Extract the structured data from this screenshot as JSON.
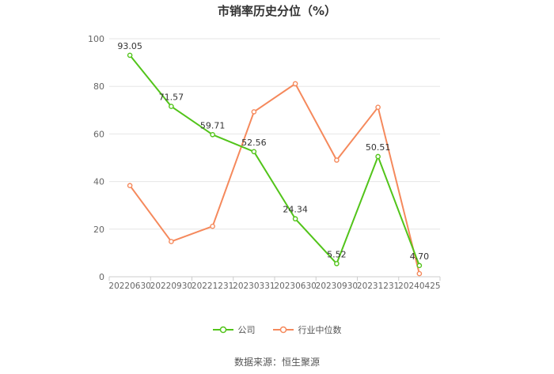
{
  "chart_data": {
    "type": "line",
    "title": "市销率历史分位（%）",
    "categories": [
      "20220630",
      "20220930",
      "20221231",
      "20230331",
      "20230630",
      "20230930",
      "20231231",
      "20240425"
    ],
    "ylim": [
      0,
      100
    ],
    "yticks": [
      0,
      20,
      40,
      60,
      80,
      100
    ],
    "grid": true,
    "legend_position": "bottom",
    "series": [
      {
        "name": "公司",
        "color": "#52c41a",
        "values": [
          93.05,
          71.57,
          59.71,
          52.56,
          24.34,
          5.52,
          50.51,
          4.7
        ],
        "labels": [
          "93.05",
          "71.57",
          "59.71",
          "52.56",
          "24.34",
          "5.52",
          "50.51",
          "4.70"
        ]
      },
      {
        "name": "行业中位数",
        "color": "#f5895c",
        "values": [
          38.3,
          14.8,
          21.2,
          69.3,
          81.1,
          49.0,
          71.2,
          1.3
        ]
      }
    ]
  },
  "source": "数据来源：恒生聚源"
}
